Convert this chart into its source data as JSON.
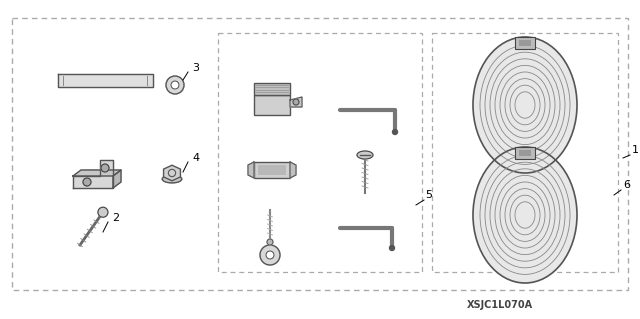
{
  "bg_color": "#ffffff",
  "dashed_color": "#aaaaaa",
  "text_color": "#000000",
  "image_code": "XSJC1L070A",
  "label_fontsize": 8
}
